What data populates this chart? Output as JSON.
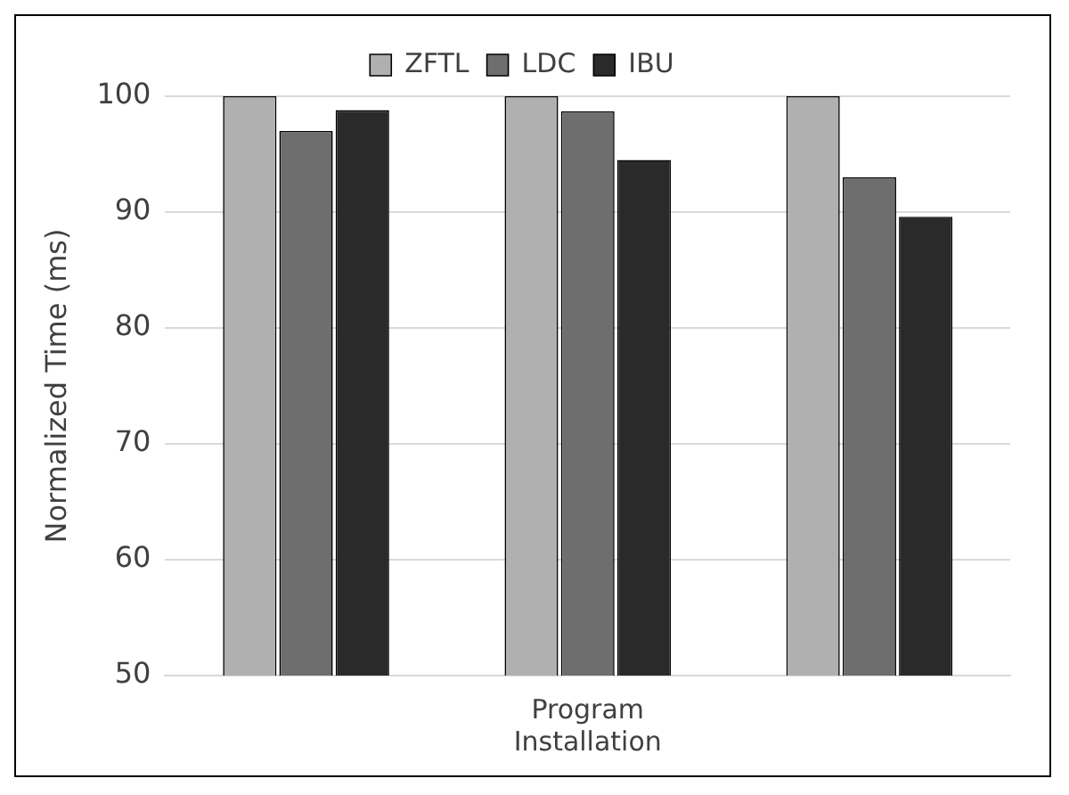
{
  "chart_data": {
    "type": "bar",
    "ylabel": "Normalized Time (ms)",
    "categories": [
      null,
      "Program Installation",
      null
    ],
    "series": [
      {
        "name": "ZFTL",
        "color": "#b0b0b0",
        "values": [
          100,
          100,
          100
        ]
      },
      {
        "name": "LDC",
        "color": "#6e6e6e",
        "values": [
          97,
          98.7,
          93
        ]
      },
      {
        "name": "IBU",
        "color": "#2a2a2a",
        "values": [
          98.8,
          94.5,
          89.6
        ]
      }
    ],
    "ylim": [
      50,
      100
    ],
    "yticks": [
      50,
      60,
      70,
      80,
      90,
      100
    ],
    "grid": "y",
    "legend": "top"
  }
}
